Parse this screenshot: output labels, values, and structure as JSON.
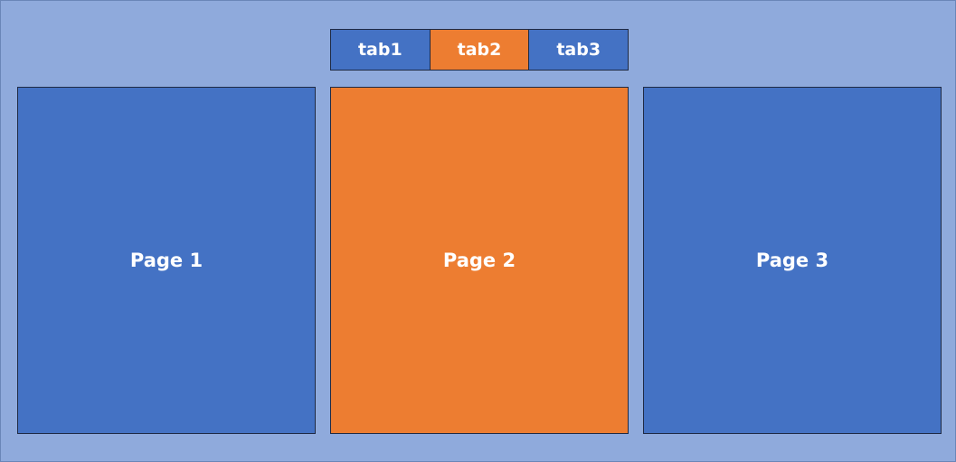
{
  "colors": {
    "background": "#8faadc",
    "inactive": "#4472c4",
    "active": "#ed7d31",
    "border": "#1f2a44",
    "text": "#ffffff"
  },
  "tabs": [
    {
      "label": "tab1",
      "active": false
    },
    {
      "label": "tab2",
      "active": true
    },
    {
      "label": "tab3",
      "active": false
    }
  ],
  "pages": [
    {
      "label": "Page 1",
      "active": false
    },
    {
      "label": "Page 2",
      "active": true
    },
    {
      "label": "Page 3",
      "active": false
    }
  ]
}
